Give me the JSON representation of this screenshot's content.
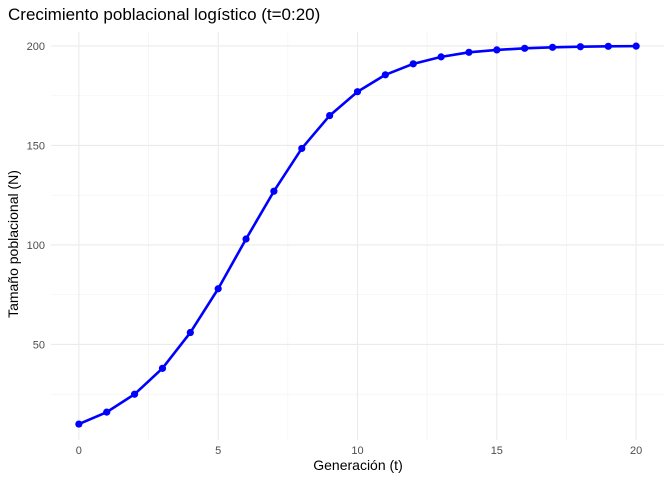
{
  "chart_data": {
    "type": "line",
    "title": "Crecimiento poblacional logístico (t=0:20)",
    "xlabel": "Generación (t)",
    "ylabel": "Tamaño poblacional (N)",
    "xlim": [
      -1,
      21
    ],
    "ylim": [
      2,
      207
    ],
    "x_ticks": [
      0,
      5,
      10,
      15,
      20
    ],
    "x_tick_labels": [
      "0",
      "5",
      "10",
      "15",
      "20"
    ],
    "x_minor_ticks": [
      2.5,
      7.5,
      12.5,
      17.5
    ],
    "y_ticks": [
      50,
      100,
      150,
      200
    ],
    "y_tick_labels": [
      "50",
      "100",
      "150",
      "200"
    ],
    "y_minor_ticks": [
      25,
      75,
      125,
      175
    ],
    "grid": true,
    "legend": "none",
    "line_color": "#0000ff",
    "series": [
      {
        "x": [
          0,
          1,
          2,
          3,
          4,
          5,
          6,
          7,
          8,
          9,
          10,
          11,
          12,
          13,
          14,
          15,
          16,
          17,
          18,
          19,
          20
        ],
        "values": [
          10,
          16,
          25,
          38,
          56,
          78,
          103,
          127,
          148.5,
          165,
          177,
          185.5,
          191,
          194.5,
          196.8,
          198,
          198.8,
          199.3,
          199.6,
          199.8,
          199.9
        ]
      }
    ]
  }
}
